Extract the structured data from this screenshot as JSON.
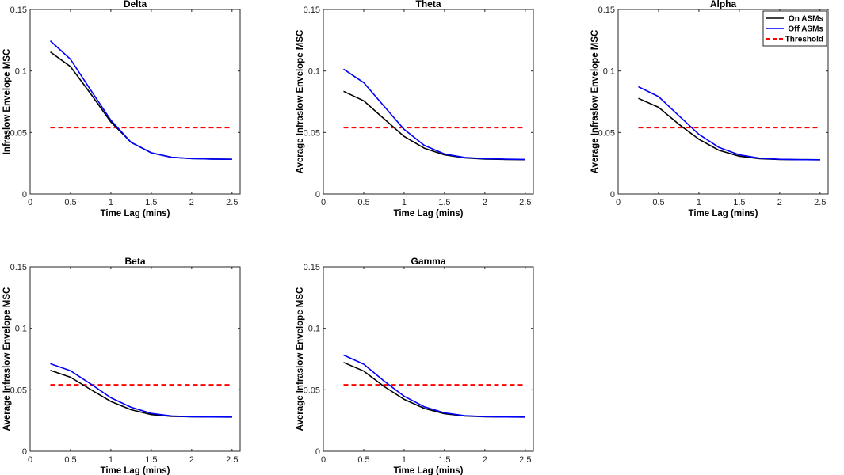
{
  "chart_data": [
    {
      "type": "line",
      "title": "Delta",
      "xlabel": "Time Lag (mins)",
      "ylabel": "Infraslow Envelope MSC",
      "xlim": [
        0,
        2.6
      ],
      "ylim": [
        0,
        0.15
      ],
      "xticks": [
        "0",
        "0.5",
        "1",
        "1.5",
        "2",
        "2.5"
      ],
      "yticks": [
        "0",
        "0.05",
        "0.1",
        "0.15"
      ],
      "x": [
        0.25,
        0.5,
        0.75,
        1.0,
        1.25,
        1.5,
        1.75,
        2.0,
        2.25,
        2.5
      ],
      "series": [
        {
          "name": "On ASMs",
          "color": "#000000",
          "values": [
            0.1155,
            0.1035,
            0.0815,
            0.0585,
            0.042,
            0.0335,
            0.0298,
            0.0288,
            0.0284,
            0.0282
          ]
        },
        {
          "name": "Off ASMs",
          "color": "#0000ff",
          "values": [
            0.1245,
            0.1095,
            0.0845,
            0.06,
            0.042,
            0.0335,
            0.0298,
            0.0288,
            0.0284,
            0.0282
          ]
        }
      ],
      "threshold": {
        "name": "Threshold",
        "color": "#ff0000",
        "value": 0.054
      },
      "legend": false
    },
    {
      "type": "line",
      "title": "Theta",
      "xlabel": "Time Lag (mins)",
      "ylabel": "Average Infraslow Envelope MSC",
      "xlim": [
        0,
        2.6
      ],
      "ylim": [
        0,
        0.15
      ],
      "xticks": [
        "0",
        "0.5",
        "1",
        "1.5",
        "2",
        "2.5"
      ],
      "yticks": [
        "0",
        "0.05",
        "0.1",
        "0.15"
      ],
      "x": [
        0.25,
        0.5,
        0.75,
        1.0,
        1.25,
        1.5,
        1.75,
        2.0,
        2.25,
        2.5
      ],
      "series": [
        {
          "name": "On ASMs",
          "color": "#000000",
          "values": [
            0.0835,
            0.0758,
            0.0612,
            0.0468,
            0.0372,
            0.0318,
            0.0293,
            0.0284,
            0.0281,
            0.0279
          ]
        },
        {
          "name": "Off ASMs",
          "color": "#0000ff",
          "values": [
            0.1015,
            0.0905,
            0.0715,
            0.0525,
            0.0395,
            0.0325,
            0.0297,
            0.0287,
            0.0283,
            0.0281
          ]
        }
      ],
      "threshold": {
        "name": "Threshold",
        "color": "#ff0000",
        "value": 0.054
      },
      "legend": false
    },
    {
      "type": "line",
      "title": "Alpha",
      "xlabel": "Time Lag (mins)",
      "ylabel": "Average Infraslow Envelope MSC",
      "xlim": [
        0,
        2.6
      ],
      "ylim": [
        0,
        0.15
      ],
      "xticks": [
        "0",
        "0.5",
        "1",
        "1.5",
        "2",
        "2.5"
      ],
      "yticks": [
        "0",
        "0.05",
        "0.1",
        "0.15"
      ],
      "x": [
        0.25,
        0.5,
        0.75,
        1.0,
        1.25,
        1.5,
        1.75,
        2.0,
        2.25,
        2.5
      ],
      "series": [
        {
          "name": "On ASMs",
          "color": "#000000",
          "values": [
            0.0778,
            0.0705,
            0.0568,
            0.0445,
            0.0355,
            0.0307,
            0.0287,
            0.0281,
            0.0279,
            0.0278
          ]
        },
        {
          "name": "Off ASMs",
          "color": "#0000ff",
          "values": [
            0.0872,
            0.0792,
            0.0638,
            0.0485,
            0.0378,
            0.0318,
            0.0291,
            0.0282,
            0.0279,
            0.0278
          ]
        }
      ],
      "threshold": {
        "name": "Threshold",
        "color": "#ff0000",
        "value": 0.054
      },
      "legend": true,
      "legend_position": "top-right"
    },
    {
      "type": "line",
      "title": "Beta",
      "xlabel": "Time Lag (mins)",
      "ylabel": "Average Infraslow Envelope MSC",
      "xlim": [
        0,
        2.6
      ],
      "ylim": [
        0,
        0.15
      ],
      "xticks": [
        "0",
        "0.5",
        "1",
        "1.5",
        "2",
        "2.5"
      ],
      "yticks": [
        "0",
        "0.05",
        "0.1",
        "0.15"
      ],
      "x": [
        0.25,
        0.5,
        0.75,
        1.0,
        1.25,
        1.5,
        1.75,
        2.0,
        2.25,
        2.5
      ],
      "series": [
        {
          "name": "On ASMs",
          "color": "#000000",
          "values": [
            0.0658,
            0.0602,
            0.0502,
            0.0405,
            0.0338,
            0.0298,
            0.0284,
            0.028,
            0.0279,
            0.0278
          ]
        },
        {
          "name": "Off ASMs",
          "color": "#0000ff",
          "values": [
            0.0712,
            0.0655,
            0.0548,
            0.0435,
            0.0358,
            0.0308,
            0.0287,
            0.0281,
            0.0279,
            0.0278
          ]
        }
      ],
      "threshold": {
        "name": "Threshold",
        "color": "#ff0000",
        "value": 0.054
      },
      "legend": false
    },
    {
      "type": "line",
      "title": "Gamma",
      "xlabel": "Time Lag (mins)",
      "ylabel": "Average Infraslow Envelope MSC",
      "xlim": [
        0,
        2.6
      ],
      "ylim": [
        0,
        0.15
      ],
      "xticks": [
        "0",
        "0.5",
        "1",
        "1.5",
        "2",
        "2.5"
      ],
      "yticks": [
        "0",
        "0.05",
        "0.1",
        "0.15"
      ],
      "x": [
        0.25,
        0.5,
        0.75,
        1.0,
        1.25,
        1.5,
        1.75,
        2.0,
        2.25,
        2.5
      ],
      "series": [
        {
          "name": "On ASMs",
          "color": "#000000",
          "values": [
            0.0722,
            0.0652,
            0.0528,
            0.0422,
            0.0348,
            0.0305,
            0.0287,
            0.0281,
            0.0279,
            0.0278
          ]
        },
        {
          "name": "Off ASMs",
          "color": "#0000ff",
          "values": [
            0.0782,
            0.0708,
            0.0572,
            0.0448,
            0.0362,
            0.0312,
            0.0289,
            0.0282,
            0.0279,
            0.0278
          ]
        }
      ],
      "threshold": {
        "name": "Threshold",
        "color": "#ff0000",
        "value": 0.054
      },
      "legend": false
    }
  ]
}
